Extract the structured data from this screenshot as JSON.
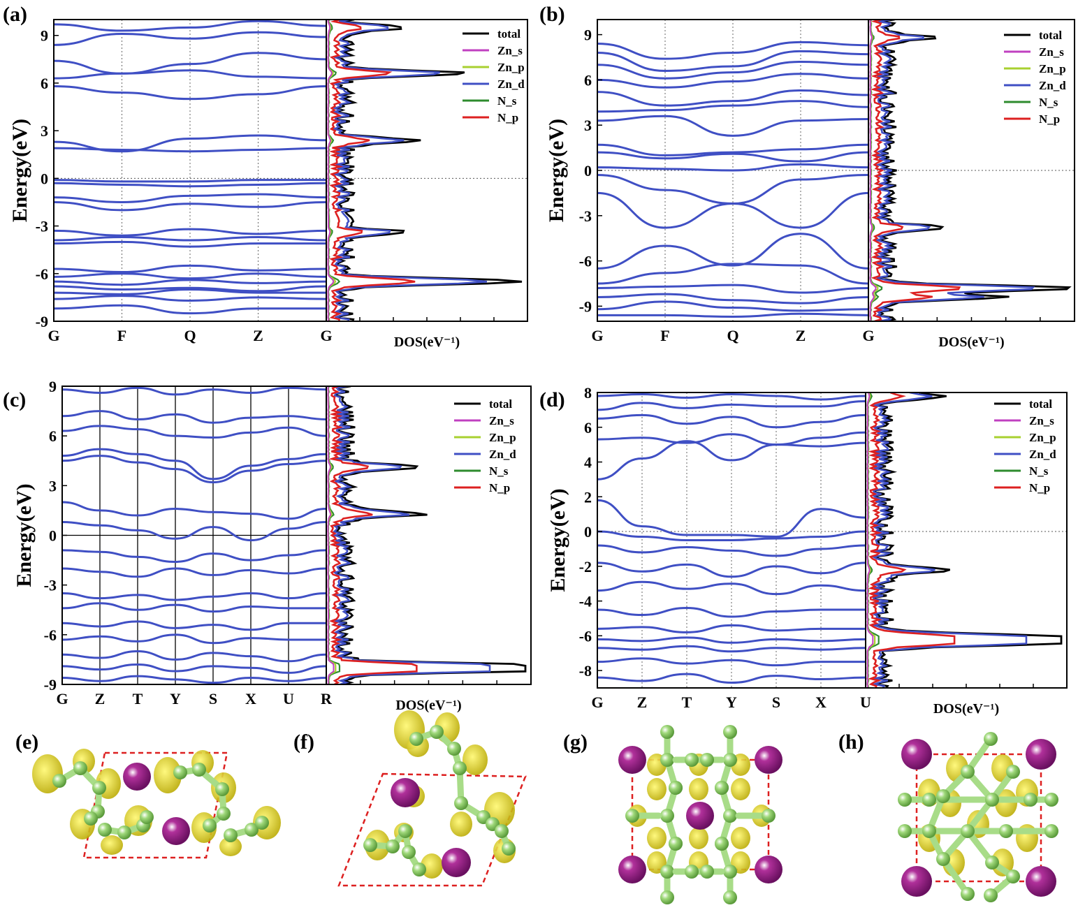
{
  "figure": {
    "panel_labels": [
      "(a)",
      "(b)",
      "(c)",
      "(d)",
      "(e)",
      "(f)",
      "(g)",
      "(h)"
    ],
    "colors": {
      "band": "#3f4fc4",
      "total": "#000000",
      "Zn_s": "#c040c0",
      "Zn_p": "#a8d030",
      "Zn_d": "#3f4fc4",
      "N_s": "#2e8b2e",
      "N_p": "#dd2020",
      "atom_Zn": "#b0309a",
      "atom_N": "#9fd87a",
      "isosurface": "#e8e020",
      "cell": "#dd2020"
    }
  },
  "chart_data": [
    {
      "panel": "(a)",
      "type": "line",
      "ylabel": "Energy(eV)",
      "ylim": [
        -9,
        10
      ],
      "yticks": [
        -9,
        -6,
        -3,
        0,
        3,
        6,
        9
      ],
      "kpoints": [
        "G",
        "F",
        "Q",
        "Z",
        "G"
      ],
      "dos_label": "DOS(eV⁻¹)",
      "legend": [
        "total",
        "Zn_s",
        "Zn_p",
        "Zn_d",
        "N_s",
        "N_p"
      ],
      "total_dos_peaks": [
        {
          "energy": -6.5,
          "value": 1.0
        },
        {
          "energy": 6.6,
          "value": 0.62
        },
        {
          "energy": 2.4,
          "value": 0.36
        },
        {
          "energy": -3.4,
          "value": 0.33
        },
        {
          "energy": 9.5,
          "value": 0.28
        }
      ],
      "bands": [
        [
          9.7,
          9.3,
          9.5,
          9.9,
          9.6
        ],
        [
          8.4,
          9.1,
          8.8,
          9.2,
          8.9
        ],
        [
          7.4,
          6.6,
          7.2,
          7.9,
          7.5
        ],
        [
          6.3,
          6.6,
          6.8,
          6.4,
          6.3
        ],
        [
          5.8,
          5.4,
          5.0,
          5.3,
          5.8
        ],
        [
          2.3,
          1.7,
          2.5,
          2.7,
          2.4
        ],
        [
          1.9,
          1.8,
          1.7,
          1.8,
          1.9
        ],
        [
          -0.1,
          -0.2,
          -0.2,
          -0.1,
          -0.1
        ],
        [
          -0.3,
          -0.4,
          -0.5,
          -0.4,
          -0.3
        ],
        [
          -1.2,
          -1.5,
          -1.1,
          -1.0,
          -1.2
        ],
        [
          -1.5,
          -2.0,
          -1.6,
          -1.8,
          -1.5
        ],
        [
          -3.3,
          -3.6,
          -3.2,
          -3.5,
          -3.3
        ],
        [
          -3.9,
          -3.7,
          -3.9,
          -3.7,
          -3.9
        ],
        [
          -4.1,
          -4.0,
          -4.3,
          -4.1,
          -4.1
        ],
        [
          -5.7,
          -5.9,
          -5.5,
          -5.8,
          -5.7
        ],
        [
          -6.2,
          -6.0,
          -6.3,
          -6.0,
          -6.2
        ],
        [
          -6.5,
          -6.7,
          -6.4,
          -6.6,
          -6.5
        ],
        [
          -6.8,
          -7.0,
          -6.9,
          -7.1,
          -6.8
        ],
        [
          -7.2,
          -7.3,
          -7.0,
          -7.2,
          -7.2
        ],
        [
          -7.6,
          -7.4,
          -7.7,
          -7.5,
          -7.6
        ],
        [
          -8.2,
          -8.0,
          -8.5,
          -8.2,
          -8.2
        ]
      ]
    },
    {
      "panel": "(b)",
      "type": "line",
      "ylabel": "Energy(eV)",
      "ylim": [
        -10,
        10
      ],
      "yticks": [
        -9,
        -6,
        -3,
        0,
        3,
        6,
        9
      ],
      "kpoints": [
        "G",
        "F",
        "Q",
        "Z",
        "G"
      ],
      "dos_label": "DOS(eV⁻¹)",
      "legend": [
        "total",
        "Zn_s",
        "Zn_p",
        "Zn_d",
        "N_s",
        "N_p"
      ],
      "total_dos_peaks": [
        {
          "energy": -7.8,
          "value": 1.0
        },
        {
          "energy": -8.4,
          "value": 0.6
        },
        {
          "energy": -3.8,
          "value": 0.3
        },
        {
          "energy": 8.8,
          "value": 0.25
        }
      ],
      "bands": [
        [
          8.4,
          7.4,
          7.8,
          8.5,
          8.3
        ],
        [
          7.8,
          6.6,
          6.9,
          7.9,
          7.7
        ],
        [
          7.0,
          6.1,
          6.5,
          7.2,
          7.0
        ],
        [
          6.0,
          5.5,
          5.9,
          6.4,
          6.1
        ],
        [
          5.2,
          4.3,
          4.6,
          5.3,
          5.0
        ],
        [
          3.9,
          4.0,
          4.3,
          4.6,
          4.2
        ],
        [
          3.3,
          3.6,
          2.3,
          3.3,
          3.4
        ],
        [
          1.7,
          1.0,
          1.2,
          1.4,
          1.7
        ],
        [
          1.2,
          0.8,
          1.1,
          0.6,
          1.2
        ],
        [
          0.2,
          0.1,
          0.0,
          0.4,
          0.2
        ],
        [
          -0.3,
          -1.3,
          -2.2,
          -0.6,
          -0.3
        ],
        [
          -1.5,
          -3.8,
          -2.2,
          -3.8,
          -1.5
        ],
        [
          -6.5,
          -5.0,
          -6.3,
          -4.2,
          -6.5
        ],
        [
          -7.5,
          -6.8,
          -6.2,
          -6.3,
          -7.5
        ],
        [
          -7.8,
          -7.7,
          -7.6,
          -8.1,
          -7.8
        ],
        [
          -8.4,
          -8.2,
          -8.6,
          -8.8,
          -8.4
        ],
        [
          -9.2,
          -8.7,
          -9.1,
          -9.3,
          -9.2
        ],
        [
          -9.6,
          -9.6,
          -9.7,
          -9.5,
          -9.6
        ]
      ]
    },
    {
      "panel": "(c)",
      "type": "line",
      "ylabel": "Energy(eV)",
      "ylim": [
        -9,
        9
      ],
      "yticks": [
        -9,
        -6,
        -3,
        0,
        3,
        6,
        9
      ],
      "kpoints": [
        "G",
        "Z",
        "T",
        "Y",
        "S",
        "X",
        "U",
        "R"
      ],
      "dos_label": "DOS(eV⁻¹)",
      "legend": [
        "total",
        "Zn_s",
        "Zn_p",
        "Zn_d",
        "N_s",
        "N_p"
      ],
      "total_dos_peaks": [
        {
          "energy": -8.1,
          "value": 1.0
        },
        {
          "energy": -7.9,
          "value": 0.88
        },
        {
          "energy": 1.3,
          "value": 0.4
        },
        {
          "energy": 4.1,
          "value": 0.38
        }
      ],
      "bands": [
        [
          8.8,
          8.6,
          8.9,
          8.5,
          8.8,
          8.6,
          8.9,
          8.8
        ],
        [
          7.2,
          7.5,
          7.0,
          7.3,
          6.8,
          7.1,
          7.2,
          7.0
        ],
        [
          6.3,
          6.6,
          6.4,
          6.0,
          5.9,
          6.2,
          6.5,
          6.0
        ],
        [
          4.8,
          5.2,
          4.9,
          4.5,
          3.4,
          4.2,
          4.6,
          4.9
        ],
        [
          4.5,
          4.8,
          4.4,
          4.0,
          3.2,
          3.9,
          4.3,
          4.5
        ],
        [
          2.0,
          1.5,
          1.2,
          1.6,
          1.4,
          1.3,
          1.0,
          1.6
        ],
        [
          0.8,
          0.6,
          0.3,
          -0.2,
          0.5,
          -0.3,
          0.4,
          0.8
        ],
        [
          -0.9,
          -1.0,
          -1.3,
          -1.6,
          -1.1,
          -1.5,
          -1.2,
          -0.9
        ],
        [
          -2.0,
          -2.2,
          -2.5,
          -2.0,
          -2.4,
          -2.1,
          -2.3,
          -2.0
        ],
        [
          -3.5,
          -3.8,
          -3.6,
          -3.9,
          -3.7,
          -3.5,
          -3.8,
          -3.5
        ],
        [
          -4.4,
          -4.1,
          -4.5,
          -4.2,
          -4.6,
          -4.3,
          -4.4,
          -4.4
        ],
        [
          -5.3,
          -5.5,
          -5.2,
          -5.6,
          -5.4,
          -5.7,
          -5.3,
          -5.3
        ],
        [
          -6.3,
          -6.1,
          -6.4,
          -6.0,
          -6.5,
          -6.2,
          -6.3,
          -6.3
        ],
        [
          -7.2,
          -7.4,
          -7.0,
          -7.5,
          -7.1,
          -7.3,
          -7.6,
          -7.2
        ],
        [
          -7.9,
          -8.1,
          -7.8,
          -8.2,
          -7.9,
          -8.0,
          -8.3,
          -7.9
        ],
        [
          -8.6,
          -8.8,
          -8.5,
          -8.7,
          -8.9,
          -8.6,
          -8.8,
          -8.6
        ]
      ]
    },
    {
      "panel": "(d)",
      "type": "line",
      "ylabel": "Energy(eV)",
      "ylim": [
        -9,
        8
      ],
      "yticks": [
        -8,
        -6,
        -4,
        -2,
        0,
        2,
        4,
        6,
        8
      ],
      "kpoints": [
        "G",
        "Z",
        "T",
        "Y",
        "S",
        "X",
        "U"
      ],
      "dos_label": "DOS(eV⁻¹)",
      "legend": [
        "total",
        "Zn_s",
        "Zn_p",
        "Zn_d",
        "N_s",
        "N_p"
      ],
      "total_dos_peaks": [
        {
          "energy": -6.1,
          "value": 1.0
        },
        {
          "energy": -6.4,
          "value": 0.9
        },
        {
          "energy": -2.2,
          "value": 0.35
        },
        {
          "energy": 7.8,
          "value": 0.3
        }
      ],
      "bands": [
        [
          7.8,
          7.9,
          7.7,
          7.9,
          7.8,
          7.6,
          7.8
        ],
        [
          7.0,
          7.4,
          7.1,
          7.3,
          7.2,
          7.2,
          7.5
        ],
        [
          6.5,
          6.7,
          6.2,
          6.6,
          6.0,
          6.3,
          6.7
        ],
        [
          5.3,
          5.4,
          5.1,
          5.6,
          5.0,
          5.4,
          5.7
        ],
        [
          3.0,
          4.2,
          5.2,
          4.1,
          5.0,
          4.9,
          5.1
        ],
        [
          1.8,
          0.3,
          -0.2,
          -0.2,
          -0.3,
          1.3,
          0.8
        ],
        [
          0.0,
          -0.3,
          -0.5,
          -0.5,
          -0.4,
          -0.3,
          0.0
        ],
        [
          -0.8,
          -1.2,
          -0.9,
          -1.1,
          -1.4,
          -1.0,
          -0.8
        ],
        [
          -1.8,
          -2.3,
          -1.9,
          -2.6,
          -2.0,
          -2.4,
          -1.8
        ],
        [
          -3.4,
          -2.9,
          -3.3,
          -3.0,
          -3.6,
          -3.1,
          -3.4
        ],
        [
          -4.5,
          -4.8,
          -4.4,
          -4.9,
          -4.6,
          -4.5,
          -4.5
        ],
        [
          -5.6,
          -5.5,
          -5.8,
          -5.4,
          -5.7,
          -5.6,
          -5.6
        ],
        [
          -6.2,
          -6.3,
          -6.1,
          -6.4,
          -6.2,
          -6.3,
          -6.2
        ],
        [
          -6.7,
          -6.8,
          -6.6,
          -6.9,
          -6.7,
          -6.8,
          -6.7
        ],
        [
          -7.5,
          -7.3,
          -7.6,
          -7.4,
          -7.7,
          -7.5,
          -7.5
        ],
        [
          -8.4,
          -8.6,
          -8.2,
          -8.7,
          -8.3,
          -8.5,
          -8.4
        ]
      ]
    }
  ]
}
